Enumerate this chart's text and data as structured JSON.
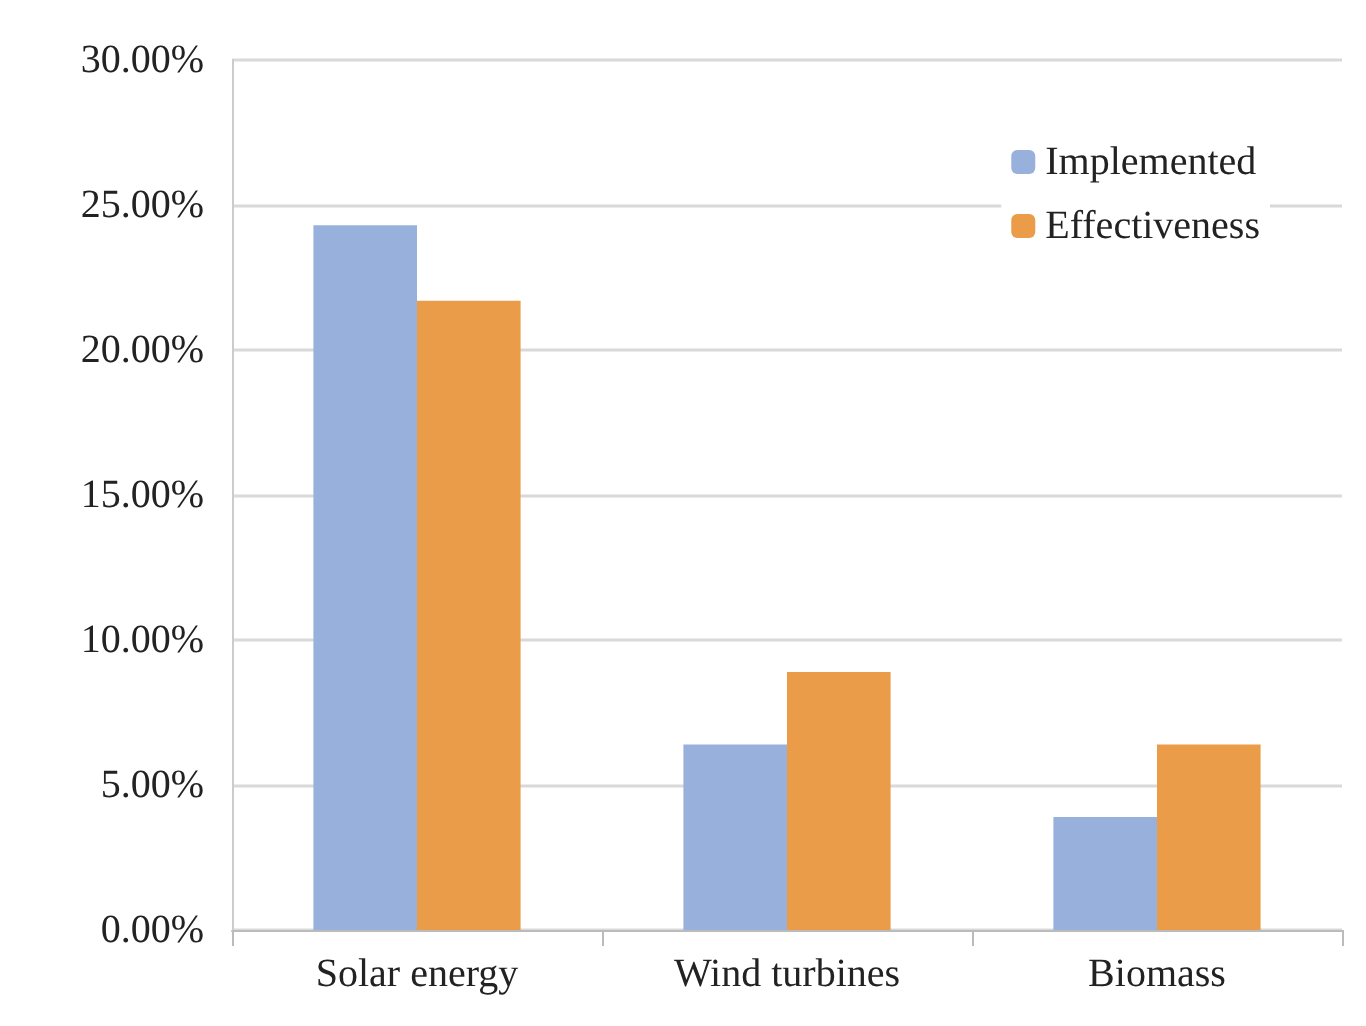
{
  "chart_data": {
    "type": "bar",
    "categories": [
      "Solar energy",
      "Wind turbines",
      "Biomass"
    ],
    "series": [
      {
        "name": "Implemented",
        "color": "#98b0dc",
        "values": [
          24.3,
          6.4,
          3.9
        ]
      },
      {
        "name": "Effectiveness",
        "color": "#eb9c48",
        "values": [
          21.7,
          8.9,
          6.4
        ]
      }
    ],
    "ylim": [
      0,
      30
    ],
    "yticks": [
      {
        "value": 0,
        "label": "0.00%"
      },
      {
        "value": 5,
        "label": "5.00%"
      },
      {
        "value": 10,
        "label": "10.00%"
      },
      {
        "value": 15,
        "label": "15.00%"
      },
      {
        "value": 20,
        "label": "20.00%"
      },
      {
        "value": 25,
        "label": "25.00%"
      },
      {
        "value": 30,
        "label": "30.00%"
      }
    ],
    "grid": "y",
    "legend": "top right"
  }
}
